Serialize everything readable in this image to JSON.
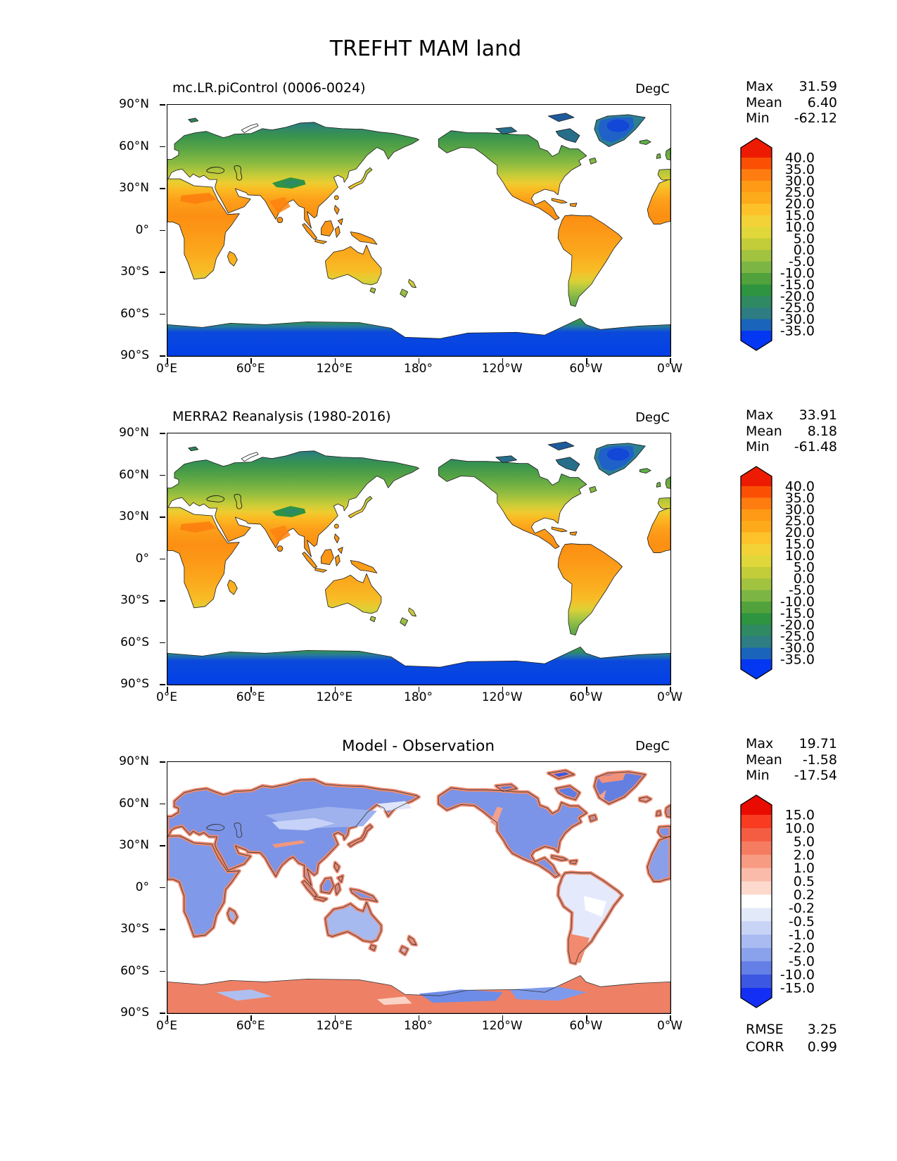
{
  "page_title": "TREFHT MAM land",
  "axes": {
    "xticks": [
      "0°E",
      "60°E",
      "120°E",
      "180°",
      "120°W",
      "60°W",
      "0°W"
    ],
    "yticks": [
      "90°N",
      "60°N",
      "30°N",
      "0°",
      "30°S",
      "60°S",
      "90°S"
    ]
  },
  "panels": [
    {
      "title": "mc.LR.piControl (0006-0024)",
      "units": "DegC",
      "stats": [
        {
          "label": "Max",
          "value": "31.59"
        },
        {
          "label": "Mean",
          "value": "6.40"
        },
        {
          "label": "Min",
          "value": "-62.12"
        }
      ],
      "colorbar": {
        "labels": [
          "40.0",
          "35.0",
          "30.0",
          "25.0",
          "20.0",
          "15.0",
          "10.0",
          "5.0",
          "0.0",
          "-5.0",
          "-10.0",
          "-15.0",
          "-20.0",
          "-25.0",
          "-30.0",
          "-35.0"
        ],
        "colors": [
          "#ec1b01",
          "#fb5004",
          "#fe7c10",
          "#fe9a15",
          "#feab1b",
          "#fdc22a",
          "#f3d238",
          "#e0d73b",
          "#c3cc39",
          "#a2c340",
          "#7cb544",
          "#51a23c",
          "#2f9440",
          "#2f8a63",
          "#2d7d83",
          "#1a64bc",
          "#0437f1"
        ]
      }
    },
    {
      "title": "MERRA2 Reanalysis (1980-2016)",
      "units": "DegC",
      "stats": [
        {
          "label": "Max",
          "value": "33.91"
        },
        {
          "label": "Mean",
          "value": "8.18"
        },
        {
          "label": "Min",
          "value": "-61.48"
        }
      ],
      "colorbar": {
        "labels": [
          "40.0",
          "35.0",
          "30.0",
          "25.0",
          "20.0",
          "15.0",
          "10.0",
          "5.0",
          "0.0",
          "-5.0",
          "-10.0",
          "-15.0",
          "-20.0",
          "-25.0",
          "-30.0",
          "-35.0"
        ],
        "colors": [
          "#ec1b01",
          "#fb5004",
          "#fe7c10",
          "#fe9a15",
          "#feab1b",
          "#fdc22a",
          "#f3d238",
          "#e0d73b",
          "#c3cc39",
          "#a2c340",
          "#7cb544",
          "#51a23c",
          "#2f9440",
          "#2f8a63",
          "#2d7d83",
          "#1a64bc",
          "#0437f1"
        ]
      }
    },
    {
      "title": "Model - Observation",
      "units": "DegC",
      "stats": [
        {
          "label": "Max",
          "value": "19.71"
        },
        {
          "label": "Mean",
          "value": "-1.58"
        },
        {
          "label": "Min",
          "value": "-17.54"
        }
      ],
      "colorbar": {
        "labels": [
          "15.0",
          "10.0",
          "5.0",
          "2.0",
          "1.0",
          "0.5",
          "0.2",
          "-0.2",
          "-0.5",
          "-1.0",
          "-2.0",
          "-5.0",
          "-10.0",
          "-15.0"
        ],
        "colors": [
          "#e90b00",
          "#f93c21",
          "#f55d42",
          "#f67c61",
          "#f89b83",
          "#fbbbaa",
          "#fdd9cd",
          "#ffffff",
          "#e2e9f9",
          "#c8d4f6",
          "#a9bbf1",
          "#8aa2ec",
          "#647fe6",
          "#3c57e1",
          "#132ff5"
        ]
      },
      "extra_stats": [
        {
          "label": "RMSE",
          "value": "3.25"
        },
        {
          "label": "CORR",
          "value": "0.99"
        }
      ]
    }
  ],
  "chart_data": [
    {
      "type": "heatmap",
      "subtype": "global-latlon-map",
      "title": "mc.LR.piControl (0006-0024)",
      "variable": "TREFHT",
      "season": "MAM",
      "region": "land",
      "units": "DegC",
      "stats": {
        "max": 31.59,
        "mean": 6.4,
        "min": -62.12
      },
      "levels": [
        -35,
        -30,
        -25,
        -20,
        -15,
        -10,
        -5,
        0,
        5,
        10,
        15,
        20,
        25,
        30,
        35,
        40
      ],
      "x_range_deg": [
        0,
        360
      ],
      "y_range_deg": [
        -90,
        90
      ],
      "legend_position": "right"
    },
    {
      "type": "heatmap",
      "subtype": "global-latlon-map",
      "title": "MERRA2 Reanalysis (1980-2016)",
      "variable": "TREFHT",
      "season": "MAM",
      "region": "land",
      "units": "DegC",
      "stats": {
        "max": 33.91,
        "mean": 8.18,
        "min": -61.48
      },
      "levels": [
        -35,
        -30,
        -25,
        -20,
        -15,
        -10,
        -5,
        0,
        5,
        10,
        15,
        20,
        25,
        30,
        35,
        40
      ],
      "x_range_deg": [
        0,
        360
      ],
      "y_range_deg": [
        -90,
        90
      ],
      "legend_position": "right"
    },
    {
      "type": "heatmap",
      "subtype": "global-latlon-map-difference",
      "title": "Model - Observation",
      "units": "DegC",
      "stats": {
        "max": 19.71,
        "mean": -1.58,
        "min": -17.54,
        "rmse": 3.25,
        "corr": 0.99
      },
      "levels": [
        -15,
        -10,
        -5,
        -2,
        -1,
        -0.5,
        -0.2,
        0.2,
        0.5,
        1,
        2,
        5,
        10,
        15
      ],
      "x_range_deg": [
        0,
        360
      ],
      "y_range_deg": [
        -90,
        90
      ],
      "legend_position": "right"
    }
  ]
}
